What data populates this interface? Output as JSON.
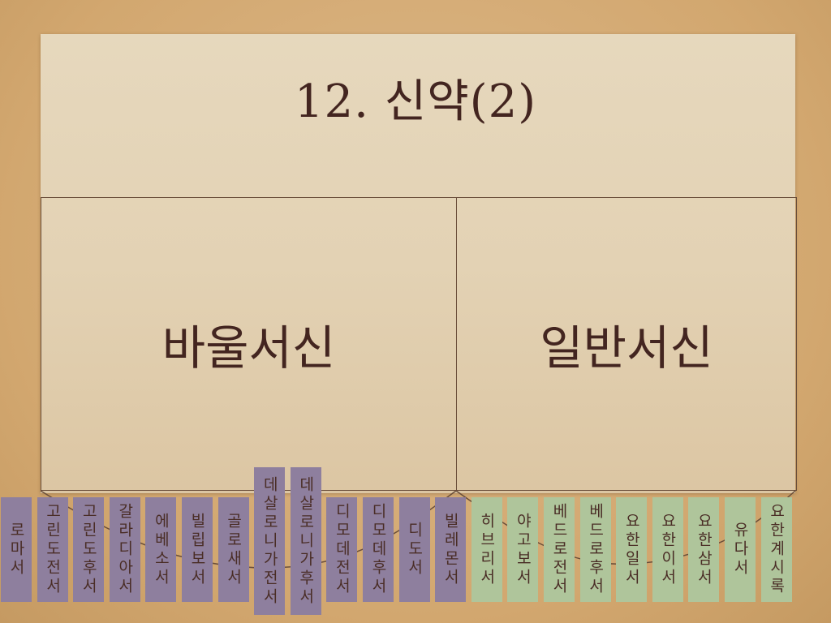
{
  "title": "12. 신약(2)",
  "categories": {
    "pauline": {
      "label": "바울서신",
      "color": "#8e7f9e"
    },
    "general": {
      "label": "일반서신",
      "color": "#afc59b"
    }
  },
  "books": [
    {
      "name": "로마서",
      "group": "pauline"
    },
    {
      "name": "고린도전서",
      "group": "pauline"
    },
    {
      "name": "고린도후서",
      "group": "pauline"
    },
    {
      "name": "갈라디아서",
      "group": "pauline"
    },
    {
      "name": "에베소서",
      "group": "pauline"
    },
    {
      "name": "빌립보서",
      "group": "pauline"
    },
    {
      "name": "골로새서",
      "group": "pauline"
    },
    {
      "name": "데살로니가전서",
      "group": "pauline"
    },
    {
      "name": "데살로니가후서",
      "group": "pauline"
    },
    {
      "name": "디모데전서",
      "group": "pauline"
    },
    {
      "name": "디모데후서",
      "group": "pauline"
    },
    {
      "name": "디도서",
      "group": "pauline"
    },
    {
      "name": "빌레몬서",
      "group": "pauline"
    },
    {
      "name": "히브리서",
      "group": "general"
    },
    {
      "name": "야고보서",
      "group": "general"
    },
    {
      "name": "베드로전서",
      "group": "general"
    },
    {
      "name": "베드로후서",
      "group": "general"
    },
    {
      "name": "요한일서",
      "group": "general"
    },
    {
      "name": "요한이서",
      "group": "general"
    },
    {
      "name": "요한삼서",
      "group": "general"
    },
    {
      "name": "유다서",
      "group": "general"
    },
    {
      "name": "요한계시록",
      "group": "general"
    }
  ]
}
